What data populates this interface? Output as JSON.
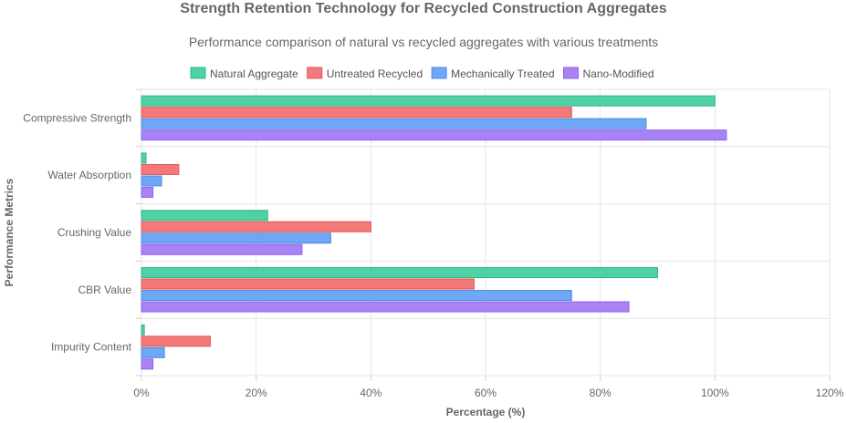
{
  "chart_data": {
    "type": "bar",
    "orientation": "horizontal",
    "title": "Strength Retention Technology for Recycled Construction Aggregates",
    "subtitle": "Performance comparison of natural vs recycled aggregates with various treatments",
    "xlabel": "Percentage (%)",
    "ylabel": "Performance Metrics",
    "xlim": [
      0,
      120
    ],
    "x_ticks": [
      "0%",
      "20%",
      "40%",
      "60%",
      "80%",
      "100%",
      "120%"
    ],
    "x_tick_values": [
      0,
      20,
      40,
      60,
      80,
      100,
      120
    ],
    "grid": true,
    "legend_position": "top-center",
    "categories": [
      "Compressive Strength",
      "Water Absorption",
      "Crushing Value",
      "CBR Value",
      "Impurity Content"
    ],
    "series": [
      {
        "name": "Natural Aggregate",
        "color": "#4fd1a5",
        "border": "#2fb584",
        "values": [
          100,
          0.8,
          22,
          90,
          0.5
        ]
      },
      {
        "name": "Untreated Recycled",
        "color": "#f47a7a",
        "border": "#e05555",
        "values": [
          75,
          6.5,
          40,
          58,
          12
        ]
      },
      {
        "name": "Mechanically Treated",
        "color": "#6fa6f5",
        "border": "#4d8ae8",
        "values": [
          88,
          3.5,
          33,
          75,
          4
        ]
      },
      {
        "name": "Nano-Modified",
        "color": "#a983f5",
        "border": "#8c63e6",
        "values": [
          102,
          2,
          28,
          85,
          2
        ]
      }
    ]
  }
}
